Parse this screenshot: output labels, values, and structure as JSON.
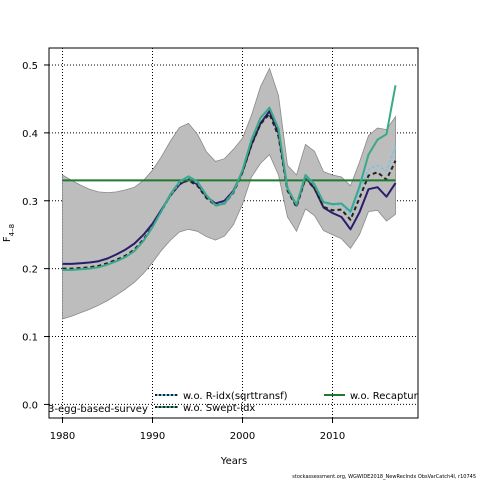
{
  "chart_data": {
    "type": "line",
    "xlabel": "Years",
    "ylabel": "F",
    "ylabel_sub": "4–8",
    "xlim": [
      1978.5,
      2019.5
    ],
    "ylim": [
      -0.02,
      0.525
    ],
    "xticks": [
      1980,
      1990,
      2000,
      2010
    ],
    "yticks": [
      0.0,
      0.1,
      0.2,
      0.3,
      0.4,
      0.5
    ],
    "ytick_labels": [
      "0.0",
      "0.1",
      "0.2",
      "0.3",
      "0.4",
      "0.5"
    ],
    "grid": true,
    "x": [
      1980,
      1981,
      1982,
      1983,
      1984,
      1985,
      1986,
      1987,
      1988,
      1989,
      1990,
      1991,
      1992,
      1993,
      1994,
      1995,
      1996,
      1997,
      1998,
      1999,
      2000,
      2001,
      2002,
      2003,
      2004,
      2005,
      2006,
      2007,
      2008,
      2009,
      2010,
      2011,
      2012,
      2013,
      2014,
      2015,
      2016,
      2017
    ],
    "confidence_band": {
      "upper": [
        0.338,
        0.33,
        0.323,
        0.317,
        0.313,
        0.312,
        0.313,
        0.316,
        0.32,
        0.33,
        0.345,
        0.365,
        0.388,
        0.408,
        0.414,
        0.398,
        0.372,
        0.358,
        0.362,
        0.376,
        0.392,
        0.426,
        0.468,
        0.495,
        0.455,
        0.352,
        0.338,
        0.383,
        0.373,
        0.343,
        0.338,
        0.335,
        0.322,
        0.357,
        0.396,
        0.407,
        0.405,
        0.424
      ],
      "lower": [
        0.126,
        0.13,
        0.135,
        0.14,
        0.146,
        0.153,
        0.161,
        0.17,
        0.18,
        0.193,
        0.209,
        0.227,
        0.242,
        0.254,
        0.258,
        0.255,
        0.247,
        0.242,
        0.248,
        0.265,
        0.295,
        0.335,
        0.355,
        0.368,
        0.338,
        0.276,
        0.255,
        0.288,
        0.278,
        0.256,
        0.25,
        0.244,
        0.23,
        0.25,
        0.284,
        0.286,
        0.27,
        0.28
      ]
    },
    "series": [
      {
        "values": [
          0.207,
          0.207,
          0.208,
          0.209,
          0.211,
          0.215,
          0.221,
          0.228,
          0.237,
          0.25,
          0.266,
          0.287,
          0.308,
          0.324,
          0.332,
          0.324,
          0.306,
          0.296,
          0.3,
          0.315,
          0.343,
          0.383,
          0.414,
          0.432,
          0.4,
          0.318,
          0.293,
          0.335,
          0.318,
          0.29,
          0.282,
          0.276,
          0.258,
          0.283,
          0.317,
          0.32,
          0.306,
          0.326
        ],
        "color": "#2b1d6e",
        "width": 2,
        "dash": ""
      },
      {
        "values": [
          0.2,
          0.2,
          0.201,
          0.202,
          0.204,
          0.208,
          0.213,
          0.219,
          0.228,
          0.243,
          0.262,
          0.285,
          0.308,
          0.325,
          0.33,
          0.322,
          0.304,
          0.293,
          0.296,
          0.312,
          0.342,
          0.382,
          0.413,
          0.428,
          0.395,
          0.315,
          0.291,
          0.333,
          0.318,
          0.291,
          0.286,
          0.287,
          0.272,
          0.304,
          0.337,
          0.342,
          0.331,
          0.359
        ],
        "color": "#222222",
        "width": 2,
        "dash": "4,3"
      },
      {
        "values": [
          0.198,
          0.198,
          0.199,
          0.2,
          0.202,
          0.206,
          0.211,
          0.217,
          0.226,
          0.241,
          0.261,
          0.284,
          0.308,
          0.326,
          0.334,
          0.326,
          0.307,
          0.294,
          0.297,
          0.314,
          0.346,
          0.388,
          0.42,
          0.437,
          0.404,
          0.32,
          0.294,
          0.336,
          0.322,
          0.297,
          0.293,
          0.294,
          0.28,
          0.314,
          0.346,
          0.352,
          0.344,
          0.38
        ],
        "color": "#6ec6f0",
        "width": 1.5,
        "dash": "3,2"
      },
      {
        "values": [
          0.33,
          0.33,
          0.33,
          0.33,
          0.33,
          0.33,
          0.33,
          0.33,
          0.33,
          0.33,
          0.33,
          0.33,
          0.33,
          0.33,
          0.33,
          0.33,
          0.33,
          0.33,
          0.33,
          0.33,
          0.33,
          0.33,
          0.33,
          0.33,
          0.33,
          0.33,
          0.33,
          0.33,
          0.33,
          0.33,
          0.33,
          0.33,
          0.33,
          0.33,
          0.33,
          0.33,
          0.33,
          0.33
        ],
        "color": "#1f7a2f",
        "width": 2,
        "dash": ""
      },
      {
        "values": [
          0.198,
          0.198,
          0.199,
          0.2,
          0.202,
          0.206,
          0.211,
          0.217,
          0.226,
          0.241,
          0.261,
          0.285,
          0.31,
          0.328,
          0.336,
          0.328,
          0.308,
          0.293,
          0.296,
          0.313,
          0.345,
          0.39,
          0.422,
          0.437,
          0.406,
          0.318,
          0.294,
          0.338,
          0.324,
          0.298,
          0.295,
          0.296,
          0.284,
          0.321,
          0.368,
          0.39,
          0.398,
          0.47
        ],
        "color": "#3aa98a",
        "width": 2,
        "dash": ""
      }
    ],
    "legend": [
      {
        "label": "3-egg-based-survey",
        "color": "#2b1d6e",
        "dash": ""
      },
      {
        "label": "w.o. R-idx(sqrttransf)",
        "color": "#222222",
        "dash": "2,2",
        "dash2": "#6ec6f0"
      },
      {
        "label": "w.o. Swept-idx",
        "color": "#222222",
        "dash": "2,2",
        "dash2": "#3aa98a"
      },
      {
        "label": "w.o. Recaptur",
        "color": "#1f7a2f",
        "dash": ""
      }
    ],
    "footnote": "stockassessment.org,  WGWIDE2018_NewRecIndx  ObsVarCatch4I, r10745"
  }
}
